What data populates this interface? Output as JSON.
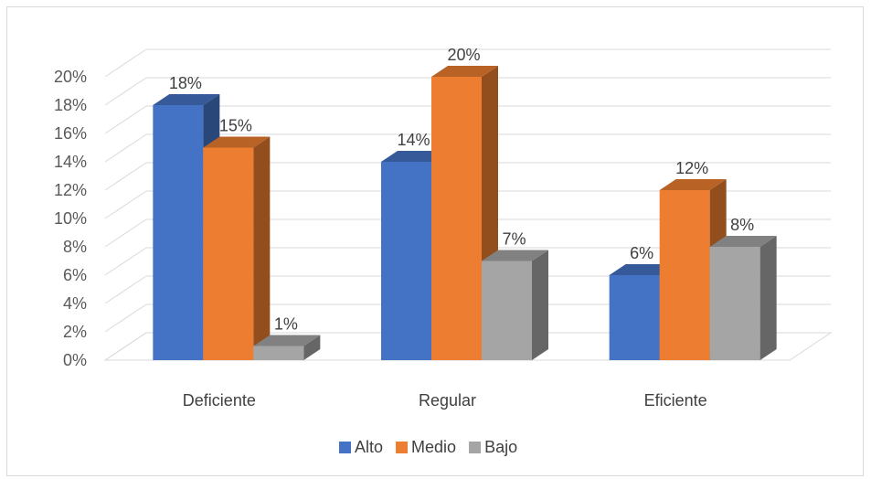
{
  "chart_data": {
    "type": "bar",
    "title": "",
    "xlabel": "",
    "ylabel": "",
    "categories": [
      "Deficiente",
      "Regular",
      "Eficiente"
    ],
    "series": [
      {
        "name": "Alto",
        "values": [
          18,
          14,
          6
        ],
        "labels": [
          "18%",
          "14%",
          "6%"
        ],
        "color": "#4472c4"
      },
      {
        "name": "Medio",
        "values": [
          15,
          20,
          12
        ],
        "labels": [
          "15%",
          "20%",
          "12%"
        ],
        "color": "#ed7d31"
      },
      {
        "name": "Bajo",
        "values": [
          1,
          7,
          8
        ],
        "labels": [
          "1%",
          "7%",
          "8%"
        ],
        "color": "#a5a5a5"
      }
    ],
    "ylim": [
      0,
      20
    ],
    "yticks": [
      0,
      2,
      4,
      6,
      8,
      10,
      12,
      14,
      16,
      18,
      20
    ],
    "ytick_labels": [
      "0%",
      "2%",
      "4%",
      "6%",
      "8%",
      "10%",
      "12%",
      "14%",
      "16%",
      "18%",
      "20%"
    ],
    "grid": true,
    "legend_position": "bottom",
    "style": "3d-clustered-column"
  }
}
